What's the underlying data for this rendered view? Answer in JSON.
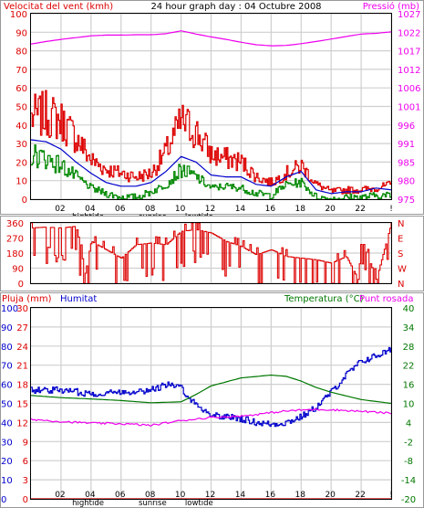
{
  "chart_data": [
    {
      "type": "line",
      "header": {
        "left": "Velocitat del vent (kmh)",
        "center": "24 hour graph day : 04 Octubre 2008",
        "right": "Pressió (mb)"
      },
      "x_ticks": [
        "02",
        "04",
        "06",
        "08",
        "10",
        "12",
        "14",
        "16",
        "18",
        "20",
        "22",
        "!"
      ],
      "x_marks": [
        "hightide",
        "sunrise",
        "lowtide"
      ],
      "y_left": {
        "range": [
          0,
          100
        ],
        "ticks": [
          "0",
          "10",
          "20",
          "30",
          "40",
          "50",
          "60",
          "70",
          "80",
          "90",
          "100"
        ]
      },
      "y_right": {
        "range": [
          975,
          1027
        ],
        "ticks": [
          "975",
          "980",
          "985",
          "991",
          "996",
          "1001",
          "1006",
          "1012",
          "1017",
          "1022",
          "1027"
        ]
      },
      "series": [
        {
          "key": "gust",
          "axis": "left",
          "color": "#dd0000",
          "style": "noisy",
          "x": [
            0,
            1,
            2,
            3,
            4,
            5,
            6,
            7,
            8,
            9,
            10,
            11,
            12,
            13,
            14,
            15,
            16,
            17,
            18,
            19,
            20,
            21,
            22,
            23,
            24
          ],
          "values": [
            44,
            46,
            42,
            33,
            21,
            16,
            14,
            12,
            14,
            26,
            42,
            36,
            24,
            22,
            20,
            12,
            9,
            14,
            18,
            8,
            4,
            5,
            5,
            6,
            8
          ]
        },
        {
          "key": "average",
          "axis": "left",
          "color": "#0000cc",
          "style": "smooth",
          "x": [
            0,
            1,
            2,
            3,
            4,
            5,
            6,
            7,
            8,
            9,
            10,
            11,
            12,
            13,
            14,
            15,
            16,
            17,
            18,
            19,
            20,
            21,
            22,
            23,
            24
          ],
          "values": [
            32,
            31,
            27,
            20,
            14,
            9,
            7,
            7,
            9,
            15,
            23,
            20,
            13,
            12,
            12,
            8,
            7,
            12,
            15,
            5,
            3,
            4,
            4,
            6,
            5
          ]
        },
        {
          "key": "minimum",
          "axis": "left",
          "color": "#008800",
          "style": "noisy",
          "x": [
            0,
            1,
            2,
            3,
            4,
            5,
            6,
            7,
            8,
            9,
            10,
            11,
            12,
            13,
            14,
            15,
            16,
            17,
            18,
            19,
            20,
            21,
            22,
            23,
            24
          ],
          "values": [
            24,
            22,
            18,
            12,
            6,
            3,
            1,
            1,
            4,
            8,
            16,
            12,
            6,
            7,
            6,
            3,
            2,
            8,
            9,
            1,
            0,
            1,
            1,
            2,
            2
          ]
        },
        {
          "key": "pressure",
          "axis": "right",
          "color": "#ee00ee",
          "style": "smooth",
          "x": [
            0,
            1,
            2,
            3,
            4,
            5,
            6,
            7,
            8,
            9,
            10,
            11,
            12,
            13,
            14,
            15,
            16,
            17,
            18,
            19,
            20,
            21,
            22,
            23,
            24
          ],
          "values": [
            1018.5,
            1019.2,
            1019.8,
            1020.3,
            1020.8,
            1021.0,
            1021.0,
            1021.1,
            1021.1,
            1021.4,
            1022.2,
            1021.3,
            1020.5,
            1019.8,
            1019.0,
            1018.3,
            1018.0,
            1018.1,
            1018.6,
            1019.2,
            1019.9,
            1020.6,
            1021.3,
            1021.5,
            1021.9
          ]
        }
      ]
    },
    {
      "type": "scatter",
      "y_left": {
        "range": [
          0,
          360
        ],
        "ticks": [
          "0",
          "90",
          "180",
          "270",
          "360"
        ]
      },
      "y_right": {
        "ticks": [
          "N",
          "W",
          "S",
          "E",
          "N"
        ]
      },
      "x_ticks": [
        "02",
        "04",
        "06",
        "08",
        "10",
        "12",
        "14",
        "16",
        "18",
        "20",
        "22",
        "!"
      ],
      "series": [
        {
          "key": "direction",
          "axis": "left",
          "color": "#dd0000",
          "x": [
            0,
            1,
            2,
            3,
            3.6,
            4,
            5,
            6,
            7,
            8,
            9,
            10,
            11,
            12,
            13,
            14,
            15,
            16,
            17,
            18,
            19,
            20,
            21,
            21.8,
            22,
            23,
            24
          ],
          "values": [
            330,
            335,
            330,
            340,
            60,
            250,
            200,
            150,
            230,
            240,
            230,
            310,
            320,
            300,
            250,
            220,
            170,
            200,
            160,
            150,
            140,
            120,
            160,
            20,
            270,
            20,
            360
          ]
        }
      ]
    },
    {
      "type": "line",
      "header": {
        "rain": "Pluja (mm)",
        "humidity": "Humitat",
        "temperature": "Temperatura (°C)",
        "dewpoint": "Punt rosada"
      },
      "x_ticks": [
        "02",
        "04",
        "06",
        "08",
        "10",
        "12",
        "14",
        "16",
        "18",
        "20",
        "22",
        "!"
      ],
      "x_marks": [
        "hightide",
        "sunrise",
        "lowtide"
      ],
      "y_rain": {
        "range": [
          0,
          30
        ],
        "ticks": [
          "0",
          "3",
          "6",
          "9",
          "12",
          "15",
          "18",
          "21",
          "24",
          "27",
          "30"
        ]
      },
      "y_humidity": {
        "range": [
          0,
          100
        ],
        "ticks": [
          "0",
          "10",
          "20",
          "30",
          "40",
          "50",
          "60",
          "70",
          "80",
          "90",
          "100"
        ]
      },
      "y_temp": {
        "range": [
          -20,
          40
        ],
        "ticks": [
          "-20",
          "-14",
          "-8",
          "-2",
          "4",
          "10",
          "16",
          "22",
          "28",
          "34",
          "40"
        ]
      },
      "series": [
        {
          "key": "humidity",
          "axis": "humidity",
          "color": "#0000cc",
          "style": "noisy",
          "x": [
            0,
            2,
            4,
            6,
            8,
            9,
            10,
            11,
            12,
            13,
            14,
            15,
            16,
            17,
            18,
            19,
            20,
            21,
            22,
            23,
            24
          ],
          "values": [
            57,
            57,
            55,
            56,
            57,
            60,
            58,
            49,
            44,
            43,
            42,
            40,
            39,
            40,
            43,
            48,
            56,
            65,
            72,
            75,
            78
          ]
        },
        {
          "key": "temperature",
          "axis": "temp",
          "color": "#007700",
          "style": "smooth",
          "x": [
            0,
            2,
            4,
            6,
            8,
            10,
            11,
            12,
            14,
            16,
            17,
            18,
            19,
            20,
            22,
            24
          ],
          "values": [
            12.5,
            11.8,
            11.4,
            10.9,
            10.2,
            10.5,
            12.8,
            15.5,
            18.0,
            18.9,
            18.5,
            17.0,
            15.0,
            13.5,
            11.2,
            10.0
          ]
        },
        {
          "key": "dewpoint",
          "axis": "temp",
          "color": "#ee00ee",
          "style": "smooth",
          "x": [
            0,
            2,
            4,
            6,
            8,
            10,
            12,
            14,
            15,
            16,
            17,
            18,
            19,
            20,
            22,
            24
          ],
          "values": [
            5.0,
            4.3,
            3.8,
            3.6,
            3.1,
            4.6,
            5.6,
            6.0,
            6.5,
            7.1,
            7.6,
            7.9,
            8.1,
            8.0,
            7.5,
            6.9
          ]
        },
        {
          "key": "rain",
          "axis": "rain",
          "color": "#dd0000",
          "style": "smooth",
          "x": [
            0,
            24
          ],
          "values": [
            0,
            0
          ]
        }
      ]
    }
  ]
}
